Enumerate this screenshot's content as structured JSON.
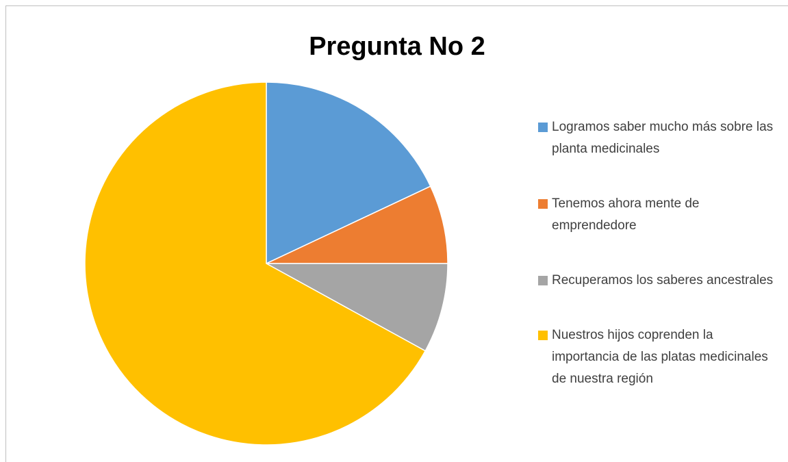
{
  "chart_data": {
    "type": "pie",
    "title": "Pregunta No 2",
    "categories": [
      "Logramos saber mucho más sobre las planta medicinales",
      "Tenemos ahora mente de emprendedore",
      "Recuperamos los saberes ancestrales",
      "Nuestros hijos coprenden la importancia de las platas medicinales de nuestra región"
    ],
    "values": [
      18,
      7,
      8,
      67
    ],
    "colors": [
      "#5B9BD5",
      "#ED7D31",
      "#A5A5A5",
      "#FFC000"
    ],
    "legend": "right"
  }
}
